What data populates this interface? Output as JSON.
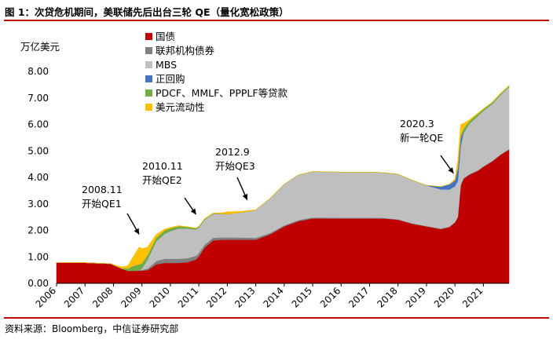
{
  "header": {
    "title": "图 1：次贷危机期间，美联储先后出台三轮 QE（量化宽松政策）"
  },
  "footer": {
    "source": "资料来源：Bloomberg，中信证券研究部"
  },
  "chart_data": {
    "type": "area",
    "title": "图 1：次贷危机期间，美联储先后出台三轮 QE（量化宽松政策）",
    "ylabel": "万亿美元",
    "xlabel": "",
    "ylim": [
      0,
      8
    ],
    "xlim": [
      2006,
      2021.9
    ],
    "y_ticks": [
      "0.00",
      "1.00",
      "2.00",
      "3.00",
      "4.00",
      "5.00",
      "6.00",
      "7.00",
      "8.00"
    ],
    "x_ticks": [
      "2006",
      "2007",
      "2008",
      "2009",
      "2010",
      "2011",
      "2012",
      "2013",
      "2014",
      "2015",
      "2016",
      "2017",
      "2018",
      "2019",
      "2020",
      "2021"
    ],
    "x": [
      2006,
      2007,
      2007.5,
      2007.9,
      2008.3,
      2008.5,
      2008.7,
      2008.9,
      2009.0,
      2009.2,
      2009.5,
      2009.8,
      2010.0,
      2010.3,
      2010.6,
      2010.9,
      2011.0,
      2011.2,
      2011.5,
      2011.8,
      2012.0,
      2012.5,
      2013.0,
      2013.5,
      2014.0,
      2014.5,
      2015.0,
      2016.0,
      2017.0,
      2017.5,
      2018.0,
      2018.5,
      2019.0,
      2019.5,
      2019.8,
      2020.0,
      2020.1,
      2020.2,
      2020.3,
      2020.5,
      2020.8,
      2021.0,
      2021.3,
      2021.6,
      2021.9
    ],
    "series": [
      {
        "name": "国债",
        "color": "#c00000",
        "values": [
          0.78,
          0.78,
          0.76,
          0.74,
          0.55,
          0.48,
          0.48,
          0.48,
          0.48,
          0.5,
          0.72,
          0.77,
          0.77,
          0.77,
          0.8,
          0.9,
          1.02,
          1.35,
          1.62,
          1.65,
          1.65,
          1.65,
          1.65,
          1.85,
          2.15,
          2.35,
          2.45,
          2.45,
          2.45,
          2.45,
          2.4,
          2.25,
          2.15,
          2.05,
          2.12,
          2.3,
          2.5,
          3.7,
          3.95,
          4.1,
          4.25,
          4.4,
          4.6,
          4.85,
          5.05
        ]
      },
      {
        "name": "联邦机构债券",
        "color": "#808080",
        "values": [
          0,
          0,
          0,
          0,
          0,
          0,
          0,
          0.02,
          0.03,
          0.06,
          0.12,
          0.16,
          0.16,
          0.16,
          0.15,
          0.14,
          0.13,
          0.11,
          0.1,
          0.09,
          0.09,
          0.08,
          0.07,
          0.05,
          0.04,
          0.04,
          0.04,
          0.03,
          0.03,
          0.02,
          0.02,
          0.02,
          0.02,
          0.02,
          0.02,
          0.02,
          0.02,
          0.02,
          0.02,
          0.02,
          0.02,
          0.02,
          0.02,
          0.02,
          0.02
        ]
      },
      {
        "name": "MBS",
        "color": "#bfbfbf",
        "values": [
          0,
          0,
          0,
          0,
          0,
          0,
          0,
          0,
          0.05,
          0.35,
          0.75,
          0.95,
          1.05,
          1.15,
          1.12,
          1.0,
          0.96,
          0.95,
          0.9,
          0.88,
          0.88,
          0.95,
          1.05,
          1.3,
          1.55,
          1.7,
          1.73,
          1.72,
          1.72,
          1.71,
          1.7,
          1.62,
          1.53,
          1.48,
          1.4,
          1.35,
          1.35,
          1.45,
          1.7,
          1.9,
          2.05,
          2.1,
          2.15,
          2.25,
          2.35
        ]
      },
      {
        "name": "正回购",
        "color": "#4472c4",
        "values": [
          0,
          0,
          0,
          0,
          0,
          0,
          0,
          0,
          0,
          0,
          0,
          0,
          0,
          0,
          0,
          0,
          0,
          0,
          0,
          0,
          0,
          0,
          0,
          0,
          0,
          0,
          0,
          0,
          0,
          0,
          0,
          0,
          0,
          0.1,
          0.2,
          0.22,
          0.45,
          0.3,
          0.02,
          0,
          0,
          0,
          0,
          0,
          0
        ]
      },
      {
        "name": "PDCF、MMLF、PPPLF等贷款",
        "color": "#70ad47",
        "values": [
          0,
          0,
          0,
          0,
          0.02,
          0.08,
          0.18,
          0.22,
          0.2,
          0.16,
          0.13,
          0.12,
          0.1,
          0.08,
          0.06,
          0.04,
          0.03,
          0.02,
          0.02,
          0.01,
          0,
          0,
          0,
          0,
          0,
          0,
          0,
          0,
          0,
          0,
          0,
          0,
          0,
          0,
          0,
          0,
          0.05,
          0.12,
          0.15,
          0.1,
          0.08,
          0.06,
          0.05,
          0.04,
          0.04
        ]
      },
      {
        "name": "美元流动性",
        "color": "#ffc000",
        "values": [
          0,
          0,
          0,
          0,
          0.05,
          0.1,
          0.35,
          0.65,
          0.55,
          0.3,
          0.12,
          0.05,
          0.03,
          0.02,
          0.01,
          0.01,
          0.01,
          0.01,
          0.01,
          0.03,
          0.08,
          0.04,
          0.01,
          0,
          0,
          0,
          0,
          0,
          0,
          0,
          0,
          0,
          0,
          0,
          0,
          0.05,
          0.3,
          0.4,
          0.2,
          0.05,
          0.02,
          0.01,
          0.01,
          0.01,
          0.01
        ]
      }
    ],
    "annotations": [
      {
        "line1": "2008.11",
        "line2": "开始QE1",
        "target_x": 2008.9,
        "target_y": 1.85
      },
      {
        "line1": "2010.11",
        "line2": "开始QE2",
        "target_x": 2010.9,
        "target_y": 2.6
      },
      {
        "line1": "2012.9",
        "line2": "开始QE3",
        "target_x": 2012.7,
        "target_y": 3.15
      },
      {
        "line1": "2020.3",
        "line2": "新一轮QE",
        "target_x": 2019.95,
        "target_y": 4.15
      }
    ]
  }
}
